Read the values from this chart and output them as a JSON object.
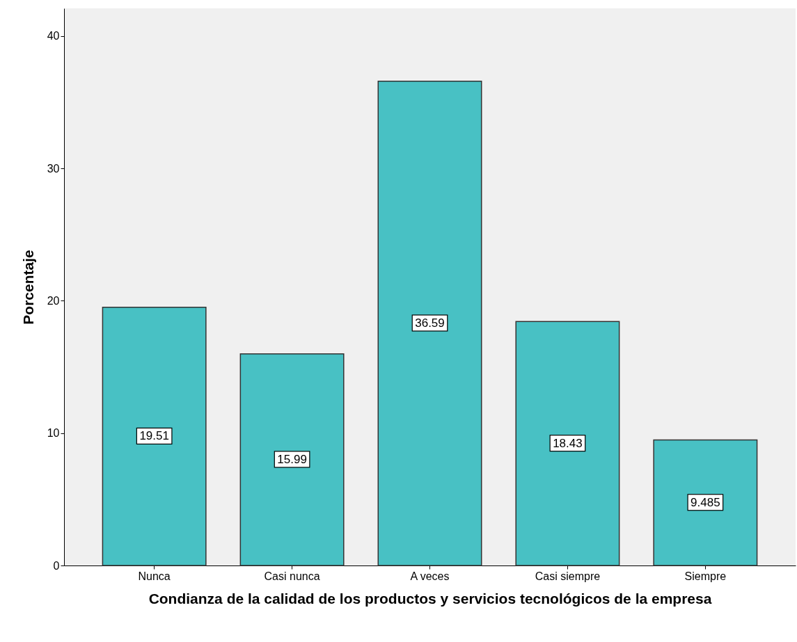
{
  "chart_data": {
    "type": "bar",
    "xlabel": "Condianza de la calidad de los productos y servicios tecnológicos de la empresa",
    "ylabel": "Porcentaje",
    "categories": [
      "Nunca",
      "Casi nunca",
      "A veces",
      "Casi siempre",
      "Siempre"
    ],
    "values": [
      19.51,
      15.99,
      36.59,
      18.43,
      9.485
    ],
    "color": "#48c1c4",
    "ylim": [
      0,
      42.1
    ],
    "yticks": [
      0,
      10,
      20,
      30,
      40
    ],
    "grid": false,
    "data_labels": true
  }
}
